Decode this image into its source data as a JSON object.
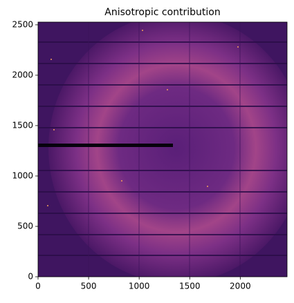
{
  "chart_data": {
    "type": "image",
    "title": "Anisotropic contribution",
    "xlim": [
      0,
      2463
    ],
    "ylim": [
      0,
      2527
    ],
    "xticks": [
      0,
      500,
      1000,
      1500,
      2000
    ],
    "yticks": [
      0,
      500,
      1000,
      1500,
      2000,
      2500
    ]
  }
}
